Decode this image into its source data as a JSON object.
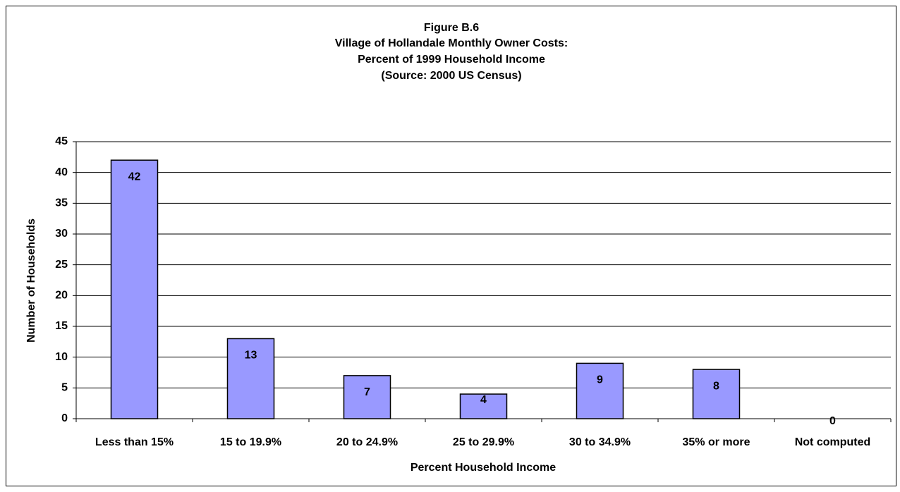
{
  "chart_data": {
    "type": "bar",
    "title": [
      "Figure B.6",
      "Village of Hollandale Monthly Owner Costs:",
      "Percent of 1999 Household Income",
      "(Source:  2000 US Census)"
    ],
    "x_label": "Percent Household Income",
    "y_label": "Number of Households",
    "categories": [
      "Less than 15%",
      "15 to 19.9%",
      "20 to 24.9%",
      "25 to 29.9%",
      "30 to 34.9%",
      "35% or more",
      "Not computed"
    ],
    "values": [
      42,
      13,
      7,
      4,
      9,
      8,
      0
    ],
    "color": "#9999ff",
    "ylim": [
      0,
      45
    ],
    "yticks": [
      0,
      5,
      10,
      15,
      20,
      25,
      30,
      35,
      40,
      45
    ],
    "grid": true
  }
}
